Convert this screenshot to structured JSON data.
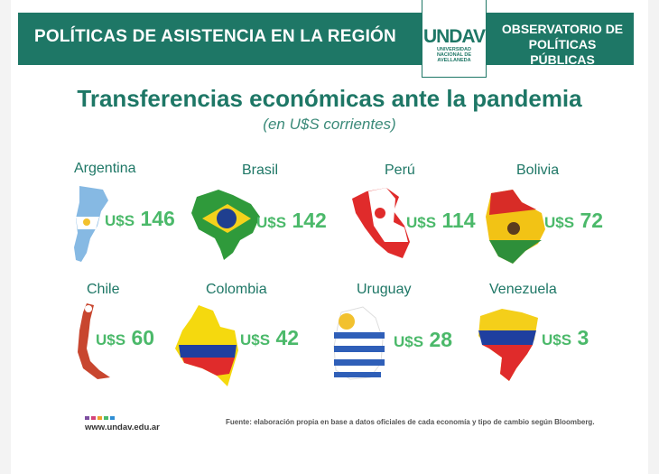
{
  "header": {
    "left_title": "POLÍTICAS DE ASISTENCIA EN LA REGIÓN",
    "logo_mark": "UNDAV",
    "logo_sub1": "UNIVERSIDAD",
    "logo_sub2": "NACIONAL DE",
    "logo_sub3": "AVELLANEDA",
    "right_title_line1": "OBSERVATORIO DE",
    "right_title_line2": "POLÍTICAS PÚBLICAS"
  },
  "title": "Transferencias económicas ante la pandemia",
  "subtitle": "(en U$S corrientes)",
  "currency": "U$S",
  "countries": [
    {
      "name": "Argentina",
      "value": "146",
      "icon": "argentina-map"
    },
    {
      "name": "Brasil",
      "value": "142",
      "icon": "brazil-map"
    },
    {
      "name": "Perú",
      "value": "114",
      "icon": "peru-map"
    },
    {
      "name": "Bolivia",
      "value": "72",
      "icon": "bolivia-map"
    },
    {
      "name": "Chile",
      "value": "60",
      "icon": "chile-map"
    },
    {
      "name": "Colombia",
      "value": "42",
      "icon": "colombia-map"
    },
    {
      "name": "Uruguay",
      "value": "28",
      "icon": "uruguay-map"
    },
    {
      "name": "Venezuela",
      "value": "3",
      "icon": "venezuela-map"
    }
  ],
  "footer": {
    "url": "www.undav.edu.ar",
    "source": "Fuente: elaboración propia en base a datos oficiales de cada economía y tipo de cambio según Bloomberg."
  },
  "colors": {
    "brand_green": "#1e7766",
    "amount_green": "#4bb96a"
  }
}
